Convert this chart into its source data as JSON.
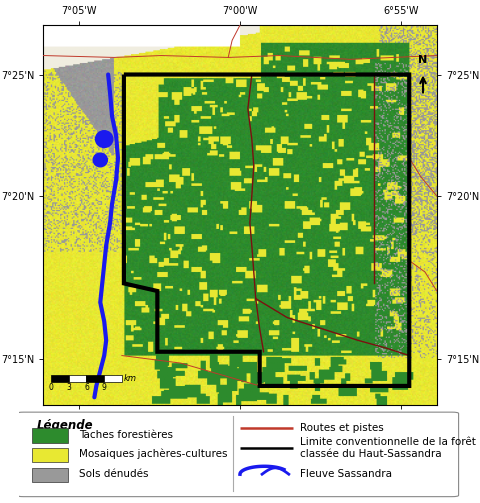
{
  "forest_color": "#2d8b2d",
  "mosaic_color": "#e8e832",
  "bare_color": "#999999",
  "river_color": "#1a1aee",
  "road_color": "#c0392b",
  "border_color": "#000000",
  "internal_border_color": "#7B1010",
  "white_patch_color": "#f0ede0",
  "legend_title": "Légende",
  "legend_forest": "Taches forestières",
  "legend_mosaic": "Mosaiques jachères-cultures",
  "legend_bare": "Sols dénudés",
  "legend_road": "Routes et pistes",
  "legend_border": "Limite conventionnelle de la forêt\nclassée du Haut-Sassandra",
  "legend_river": "Fleuve Sassandra",
  "xtick_labels": [
    "7°05'W",
    "7°00'W",
    "6°55'W"
  ],
  "ytick_labels": [
    "7°25'N",
    "7°20'N",
    "7°15'N"
  ],
  "scalebar_values": [
    "0",
    "3",
    "6",
    "9"
  ],
  "scalebar_unit": "km"
}
